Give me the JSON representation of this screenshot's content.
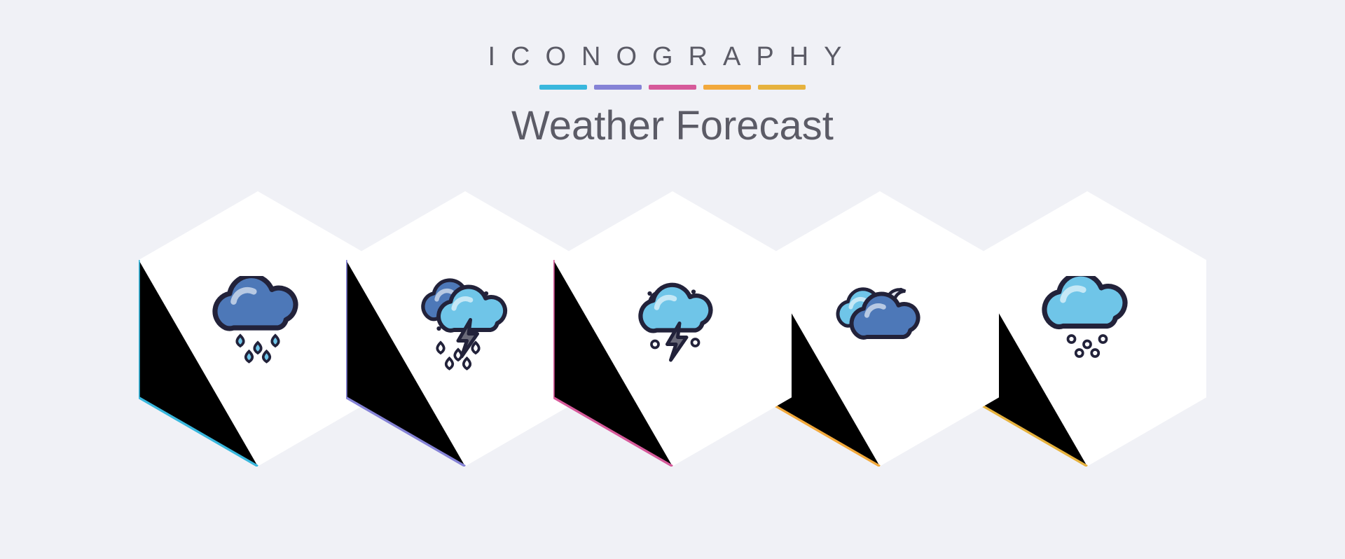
{
  "header": {
    "brand": "ICONOGRAPHY",
    "title": "Weather Forecast",
    "stripe_colors": [
      "#39b7dd",
      "#8583d6",
      "#d65a9a",
      "#f2a93c",
      "#e6b23e"
    ]
  },
  "palette": {
    "background": "#f0f1f6",
    "text": "#5b5b66",
    "hex_fill": "#ffffff",
    "cloud_blue": "#6fc5e8",
    "cloud_dark": "#4d78b8",
    "outline": "#22223a",
    "bolt": "#6b6b7a",
    "moon": "#dfe3ee"
  },
  "tiles": [
    {
      "name": "rain-icon",
      "accent": "#39b7dd"
    },
    {
      "name": "thunderstorm-icon",
      "accent": "#8583d6"
    },
    {
      "name": "night-thunder-icon",
      "accent": "#d65a9a"
    },
    {
      "name": "cloudy-night-icon",
      "accent": "#f2a93c"
    },
    {
      "name": "snow-icon",
      "accent": "#e6b23e"
    }
  ]
}
